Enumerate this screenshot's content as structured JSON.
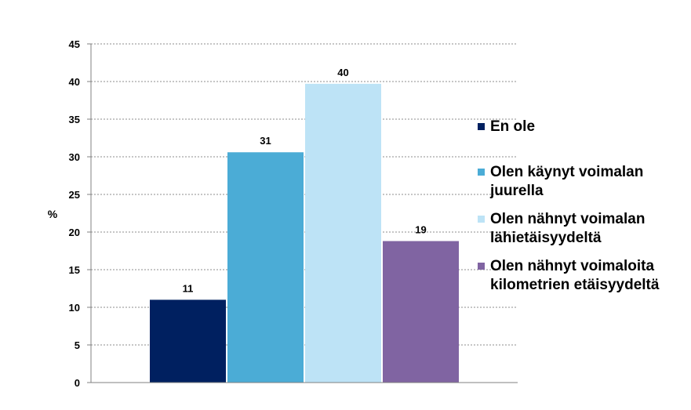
{
  "chart_data": {
    "type": "bar",
    "categories": [
      "En ole",
      "Olen käynyt voimalan juurella",
      "Olen nähnyt voimalan lähietäisyydeltä",
      "Olen nähnyt voimaloita kilometrien etäisyydeltä"
    ],
    "values": [
      11,
      30.6,
      39.7,
      18.8
    ],
    "data_labels": [
      "11",
      "31",
      "40",
      "19"
    ],
    "colors": [
      "#002060",
      "#4BACD6",
      "#BDE3F6",
      "#8064A2"
    ],
    "ylabel": "%",
    "ylim": [
      0,
      45
    ],
    "yticks": [
      "0",
      "5",
      "10",
      "15",
      "20",
      "25",
      "30",
      "35",
      "40",
      "45"
    ],
    "grid": true,
    "legend_position": "right",
    "legend": [
      {
        "lines": [
          "En ole"
        ]
      },
      {
        "lines": [
          "Olen käynyt voimalan",
          "juurella"
        ]
      },
      {
        "lines": [
          "Olen nähnyt voimalan",
          "lähietäisyydeltä"
        ]
      },
      {
        "lines": [
          "Olen nähnyt voimaloita",
          "kilometrien etäisyydeltä"
        ]
      }
    ]
  }
}
